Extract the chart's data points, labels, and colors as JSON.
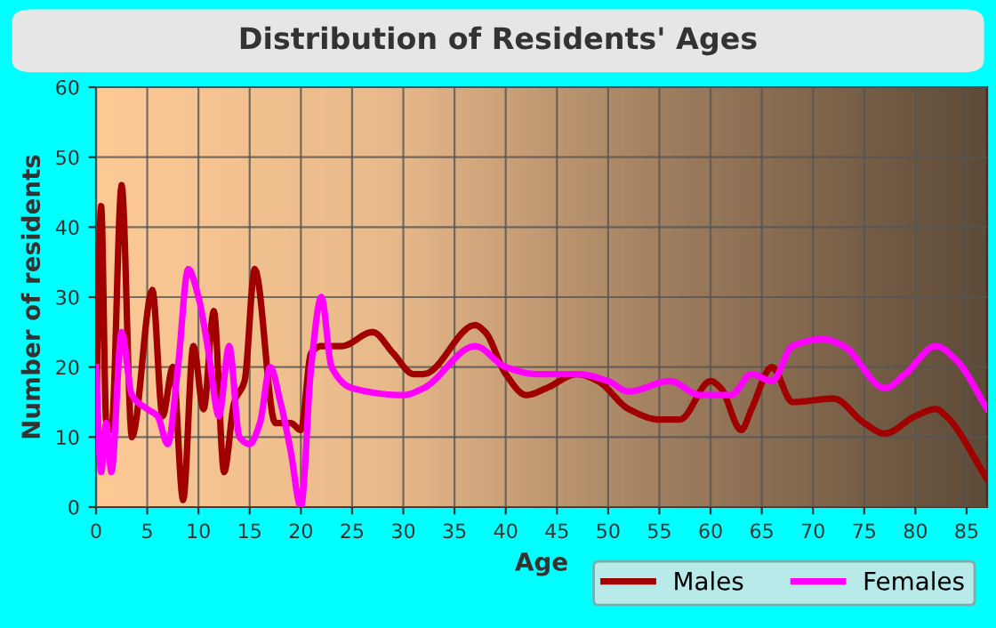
{
  "chart_data": {
    "type": "line",
    "title": "Distribution of Residents' Ages",
    "xlabel": "Age",
    "ylabel": "Number of residents",
    "xlim": [
      0,
      87
    ],
    "ylim": [
      0,
      60
    ],
    "xticks": [
      0,
      5,
      10,
      15,
      20,
      25,
      30,
      35,
      40,
      45,
      50,
      55,
      60,
      65,
      70,
      75,
      80,
      85
    ],
    "yticks": [
      0,
      10,
      20,
      30,
      40,
      50,
      60
    ],
    "grid": true,
    "legend": "bottom right",
    "marker": "none",
    "line_style": "solid",
    "series": [
      {
        "name": "Males",
        "color": "#a00000",
        "x": [
          0,
          0.5,
          1,
          1.5,
          2.5,
          3.5,
          5.5,
          6.5,
          7.5,
          8.5,
          9.5,
          10.5,
          11.5,
          12.5,
          13.5,
          14.5,
          15.5,
          17.5,
          19,
          20,
          21,
          22,
          24,
          27,
          29,
          31,
          32,
          37,
          38,
          40,
          42,
          44,
          47,
          49,
          52,
          55,
          57,
          60,
          61,
          63,
          64,
          66,
          68,
          72,
          75,
          77,
          80,
          82,
          83,
          87
        ],
        "values": [
          12,
          43,
          12,
          11,
          46,
          10,
          31,
          13,
          20,
          1,
          23,
          14,
          28,
          5,
          15,
          18,
          34,
          12,
          12,
          11,
          22,
          23,
          23,
          25,
          22,
          19,
          19,
          26,
          25,
          19,
          16,
          17,
          19,
          18,
          14,
          12.5,
          12.5,
          18,
          17,
          11,
          14,
          20,
          15,
          15.5,
          12,
          10.5,
          13,
          14,
          13,
          4
        ]
      },
      {
        "name": "Females",
        "color": "#ff00ff",
        "x": [
          0,
          0.5,
          1,
          1.5,
          2.5,
          3.5,
          5,
          6,
          7,
          8,
          9,
          10,
          11,
          12,
          13,
          14,
          15,
          16,
          17,
          18,
          19,
          20,
          21,
          22,
          23,
          25,
          30,
          32,
          37,
          40,
          43,
          47,
          50,
          52,
          56,
          59,
          62,
          64,
          66,
          68,
          71,
          73,
          77,
          79,
          82,
          84,
          87
        ],
        "values": [
          20,
          5,
          12,
          5,
          25,
          16,
          14,
          13,
          9,
          20,
          34,
          30,
          22,
          13,
          23,
          10,
          9,
          12,
          20,
          15,
          8,
          0,
          20,
          30,
          20,
          17,
          16,
          17,
          23,
          20,
          19,
          19,
          18,
          16.5,
          18,
          16,
          16,
          19,
          18,
          23,
          24,
          23,
          17,
          19,
          23,
          21,
          14
        ]
      }
    ]
  }
}
